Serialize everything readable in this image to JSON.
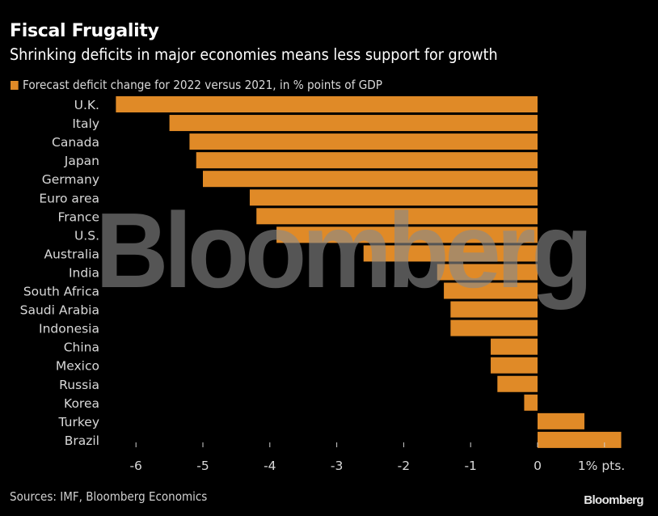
{
  "chart_data": {
    "type": "bar",
    "orientation": "horizontal",
    "title": "Fiscal Frugality",
    "subtitle": "Shrinking deficits in major economies means less support for growth",
    "legend": [
      {
        "label": "Forecast deficit change for 2022 versus 2021, in % points of GDP",
        "color": "#E08A27"
      }
    ],
    "legend_placement": "top-left",
    "categories": [
      "U.K.",
      "Italy",
      "Canada",
      "Japan",
      "Germany",
      "Euro area",
      "France",
      "U.S.",
      "Australia",
      "India",
      "South Africa",
      "Saudi Arabia",
      "Indonesia",
      "China",
      "Mexico",
      "Russia",
      "Korea",
      "Turkey",
      "Brazil"
    ],
    "series": [
      {
        "name": "Forecast deficit change for 2022 versus 2021, in % points of GDP",
        "color": "#E08A27",
        "values": [
          -6.3,
          -5.5,
          -5.2,
          -5.1,
          -5.0,
          -4.3,
          -4.2,
          -3.9,
          -2.6,
          -1.5,
          -1.4,
          -1.3,
          -1.3,
          -0.7,
          -0.7,
          -0.6,
          -0.2,
          0.7,
          1.25
        ]
      }
    ],
    "xlabel": "",
    "ylabel": "",
    "xlim": [
      -6.5,
      1.4
    ],
    "xticks": [
      -6,
      -5,
      -4,
      -3,
      -2,
      -1,
      0,
      1
    ],
    "xtick_labels": [
      "-6",
      "-5",
      "-4",
      "-3",
      "-2",
      "-1",
      "0",
      "1% pts."
    ],
    "grid": false
  },
  "header": {
    "title": "Fiscal Frugality",
    "subtitle": "Shrinking deficits in major economies means less support for growth",
    "legend_label": "Forecast deficit change for 2022 versus 2021, in % points of GDP"
  },
  "footer": {
    "source": "Sources: IMF, Bloomberg Economics",
    "logo": "Bloomberg"
  },
  "watermark": "Bloomberg",
  "colors": {
    "bar": "#E08A27",
    "background": "#000000",
    "text": "#d9d9d9"
  }
}
